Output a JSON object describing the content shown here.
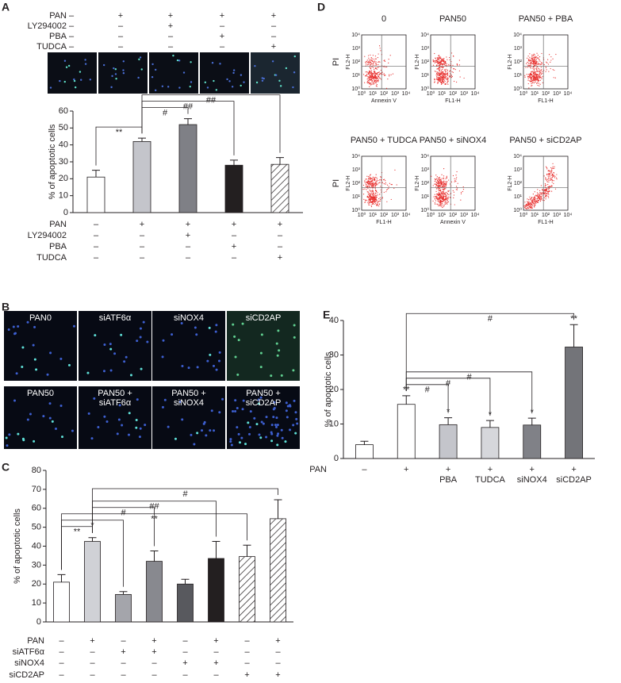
{
  "panel_labels": [
    "A",
    "B",
    "C",
    "D",
    "E"
  ],
  "chart_data": [
    {
      "type": "bar",
      "ylabel": "% of apoptotic cells",
      "ylim": [
        0,
        60
      ],
      "yticks": [
        0,
        10,
        20,
        30,
        40,
        50,
        60
      ],
      "values": [
        21,
        42,
        52,
        28,
        28.5
      ],
      "errors": [
        4,
        2,
        3.5,
        3,
        4
      ],
      "colors": [
        "#ffffff",
        "#c4c5cb",
        "#7f8086",
        "#231f20",
        "#ffffff"
      ],
      "hatched": [
        false,
        false,
        false,
        false,
        true
      ],
      "conditions": [
        {
          "name": "PAN",
          "marks": [
            "–",
            "+",
            "+",
            "+",
            "+"
          ]
        },
        {
          "name": "LY294002",
          "marks": [
            "–",
            "–",
            "+",
            "–",
            "–"
          ]
        },
        {
          "name": "PBA",
          "marks": [
            "–",
            "–",
            "–",
            "+",
            "–"
          ]
        },
        {
          "name": "TUDCA",
          "marks": [
            "–",
            "–",
            "–",
            "–",
            "+"
          ]
        }
      ],
      "annotations": [
        {
          "text": "**",
          "from": 0,
          "to": 1
        },
        {
          "text": "#",
          "from": 1,
          "to": 2
        },
        {
          "text": "##",
          "from": 1,
          "to": 3
        },
        {
          "text": "##",
          "from": 1,
          "to": 4
        }
      ]
    },
    {
      "type": "bar",
      "ylabel": "% of apoptotic cells",
      "ylim": [
        0,
        80
      ],
      "yticks": [
        0,
        10,
        20,
        30,
        40,
        50,
        60,
        70,
        80
      ],
      "values": [
        21,
        42.5,
        14.5,
        32,
        20,
        33.5,
        34.5,
        54.5
      ],
      "errors": [
        4,
        2,
        1.5,
        5.5,
        2.5,
        9,
        6,
        10
      ],
      "colors": [
        "#ffffff",
        "#d0d1d6",
        "#a4a5ab",
        "#88898f",
        "#58595e",
        "#231f20",
        "#ffffff",
        "#ffffff"
      ],
      "hatched": [
        false,
        false,
        false,
        false,
        false,
        false,
        true,
        true
      ],
      "conditions": [
        {
          "name": "PAN",
          "marks": [
            "–",
            "+",
            "–",
            "+",
            "–",
            "+",
            "–",
            "+"
          ]
        },
        {
          "name": "siATF6α",
          "marks": [
            "–",
            "–",
            "+",
            "+",
            "–",
            "–",
            "–",
            "–"
          ]
        },
        {
          "name": "siNOX4",
          "marks": [
            "–",
            "–",
            "–",
            "–",
            "+",
            "+",
            "–",
            "–"
          ]
        },
        {
          "name": "siCD2AP",
          "marks": [
            "–",
            "–",
            "–",
            "–",
            "–",
            "–",
            "+",
            "+"
          ]
        }
      ],
      "annotations": [
        {
          "text": "**",
          "from": 0,
          "to": 1
        },
        {
          "text": "*",
          "from": 0,
          "to": 2
        },
        {
          "text": "**",
          "from": 0,
          "to": 6
        },
        {
          "text": "#",
          "from": 1,
          "to": 3
        },
        {
          "text": "##",
          "from": 1,
          "to": 5
        },
        {
          "text": "#",
          "from": 1,
          "to": 7
        }
      ]
    },
    {
      "type": "bar",
      "ylabel": "% of apoptotic cells",
      "ylim": [
        0,
        40
      ],
      "yticks": [
        0,
        10,
        20,
        30,
        40
      ],
      "values": [
        4,
        15.7,
        9.8,
        9,
        9.7,
        32.3
      ],
      "errors": [
        1,
        2.5,
        2,
        2,
        2,
        6.5
      ],
      "colors": [
        "#ffffff",
        "#ffffff",
        "#c4c5cb",
        "#d6d7db",
        "#808187",
        "#737479"
      ],
      "hatched": [
        false,
        false,
        false,
        false,
        false,
        false
      ],
      "marks": [
        null,
        "**",
        "*",
        "*",
        "*",
        "**"
      ],
      "conditions": [
        {
          "name": "PAN",
          "marks": [
            "–",
            "+",
            "+",
            "+",
            "+",
            "+"
          ]
        }
      ],
      "categories": [
        null,
        null,
        "PBA",
        "TUDCA",
        "siNOX4",
        "siCD2AP"
      ],
      "annotations": [
        {
          "text": "#",
          "from": 1,
          "to": 2
        },
        {
          "text": "#",
          "from": 1,
          "to": 3
        },
        {
          "text": "#",
          "from": 1,
          "to": 4
        },
        {
          "text": "#",
          "from": 1,
          "to": 5
        }
      ]
    }
  ],
  "micrographs": {
    "rows": [
      [
        [
          "PAN0"
        ],
        [
          "siATF6α"
        ],
        [
          "siNOX4"
        ],
        [
          "siCD2AP"
        ]
      ],
      [
        [
          "PAN50"
        ],
        [
          "PAN50 +",
          "siATF6α"
        ],
        [
          "PAN50 +",
          "siNOX4"
        ],
        [
          "PAN50 +",
          "siCD2AP"
        ]
      ]
    ]
  },
  "flow_plots": {
    "ticks": [
      "10⁰",
      "10¹",
      "10²",
      "10³",
      "10⁴"
    ],
    "plots": [
      {
        "title": "0",
        "side_label": "PI",
        "ylabel": "FL2-H",
        "xlabel": "Annexin V"
      },
      {
        "title": "PAN50",
        "ylabel": "FL2-H",
        "xlabel": "FL1-H"
      },
      {
        "title": "PAN50 + PBA",
        "ylabel": "FL2-H",
        "xlabel": "FL1-H"
      },
      {
        "title": "PAN50 + TUDCA",
        "side_label": "PI",
        "ylabel": "FL2-H",
        "xlabel": "FL1-H"
      },
      {
        "title": "PAN50 + siNOX4",
        "ylabel": "FL2-H",
        "xlabel": "Annexin V"
      },
      {
        "title": "PAN50 + siCD2AP",
        "ylabel": "FL2-H",
        "xlabel": "FL1-H"
      }
    ]
  }
}
